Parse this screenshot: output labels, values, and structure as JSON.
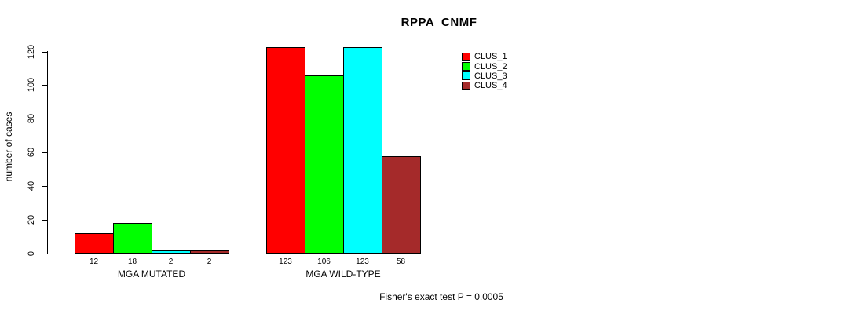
{
  "chart_data": {
    "type": "bar",
    "title": "RPPA_CNMF",
    "ylabel": "number of cases",
    "xlabel": "",
    "ylim": [
      0,
      120
    ],
    "yticks": [
      0,
      20,
      40,
      60,
      80,
      100,
      120
    ],
    "categories": [
      "MGA MUTATED",
      "MGA WILD-TYPE"
    ],
    "series": [
      {
        "name": "CLUS_1",
        "color": "#FF0000",
        "values": [
          12,
          123
        ]
      },
      {
        "name": "CLUS_2",
        "color": "#00FF00",
        "values": [
          18,
          106
        ]
      },
      {
        "name": "CLUS_3",
        "color": "#00FFFF",
        "values": [
          2,
          123
        ]
      },
      {
        "name": "CLUS_4",
        "color": "#A52A2A",
        "values": [
          2,
          58
        ]
      }
    ],
    "bar_value_labels": [
      [
        "12",
        "18",
        "2",
        "2"
      ],
      [
        "123",
        "106",
        "123",
        "58"
      ]
    ],
    "legend_position": "top-right",
    "grid": false,
    "annotation": "Fisher's exact test P = 0.0005",
    "colors": {
      "axis": "#000000",
      "text": "#000000",
      "background": "#FFFFFF"
    }
  }
}
